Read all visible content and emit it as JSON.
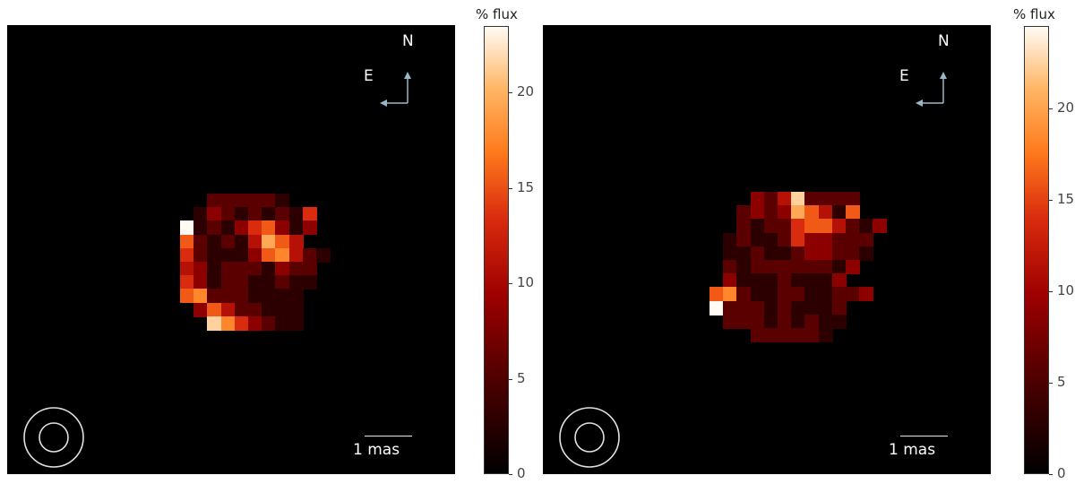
{
  "panels": [
    {
      "compass": {
        "north": "N",
        "east": "E"
      },
      "scalebar_label": "1 mas",
      "colorbar": {
        "title": "% flux",
        "ticks": [
          "0",
          "5",
          "10",
          "15",
          "20"
        ],
        "max": 23.5
      }
    },
    {
      "compass": {
        "north": "N",
        "east": "E"
      },
      "scalebar_label": "1 mas",
      "colorbar": {
        "title": "% flux",
        "ticks": [
          "0",
          "5",
          "10",
          "15",
          "20"
        ],
        "max": 24.5
      }
    }
  ],
  "colormap": [
    "#000000",
    "#4a0000",
    "#9e0000",
    "#d92b0e",
    "#ff7a1c",
    "#ffb564",
    "#fffbf4"
  ],
  "images": [
    {
      "rows": [
        "..222221..",
        ".132121215",
        "a121356313",
        "621214864",
        "52111367421",
        "4312221322",
        "5312211211",
        "672221111",
        ".36422111",
        "..9753211"
      ]
    },
    {
      "rows": [
        "...32492222",
        "..232386416",
        "..21225664213",
        ".12112533222",
        ".11211233221",
        ".2122222213",
        ".311121113",
        "672112211223",
        "a222121112",
        ".222121211",
        "...222221"
      ]
    }
  ]
}
